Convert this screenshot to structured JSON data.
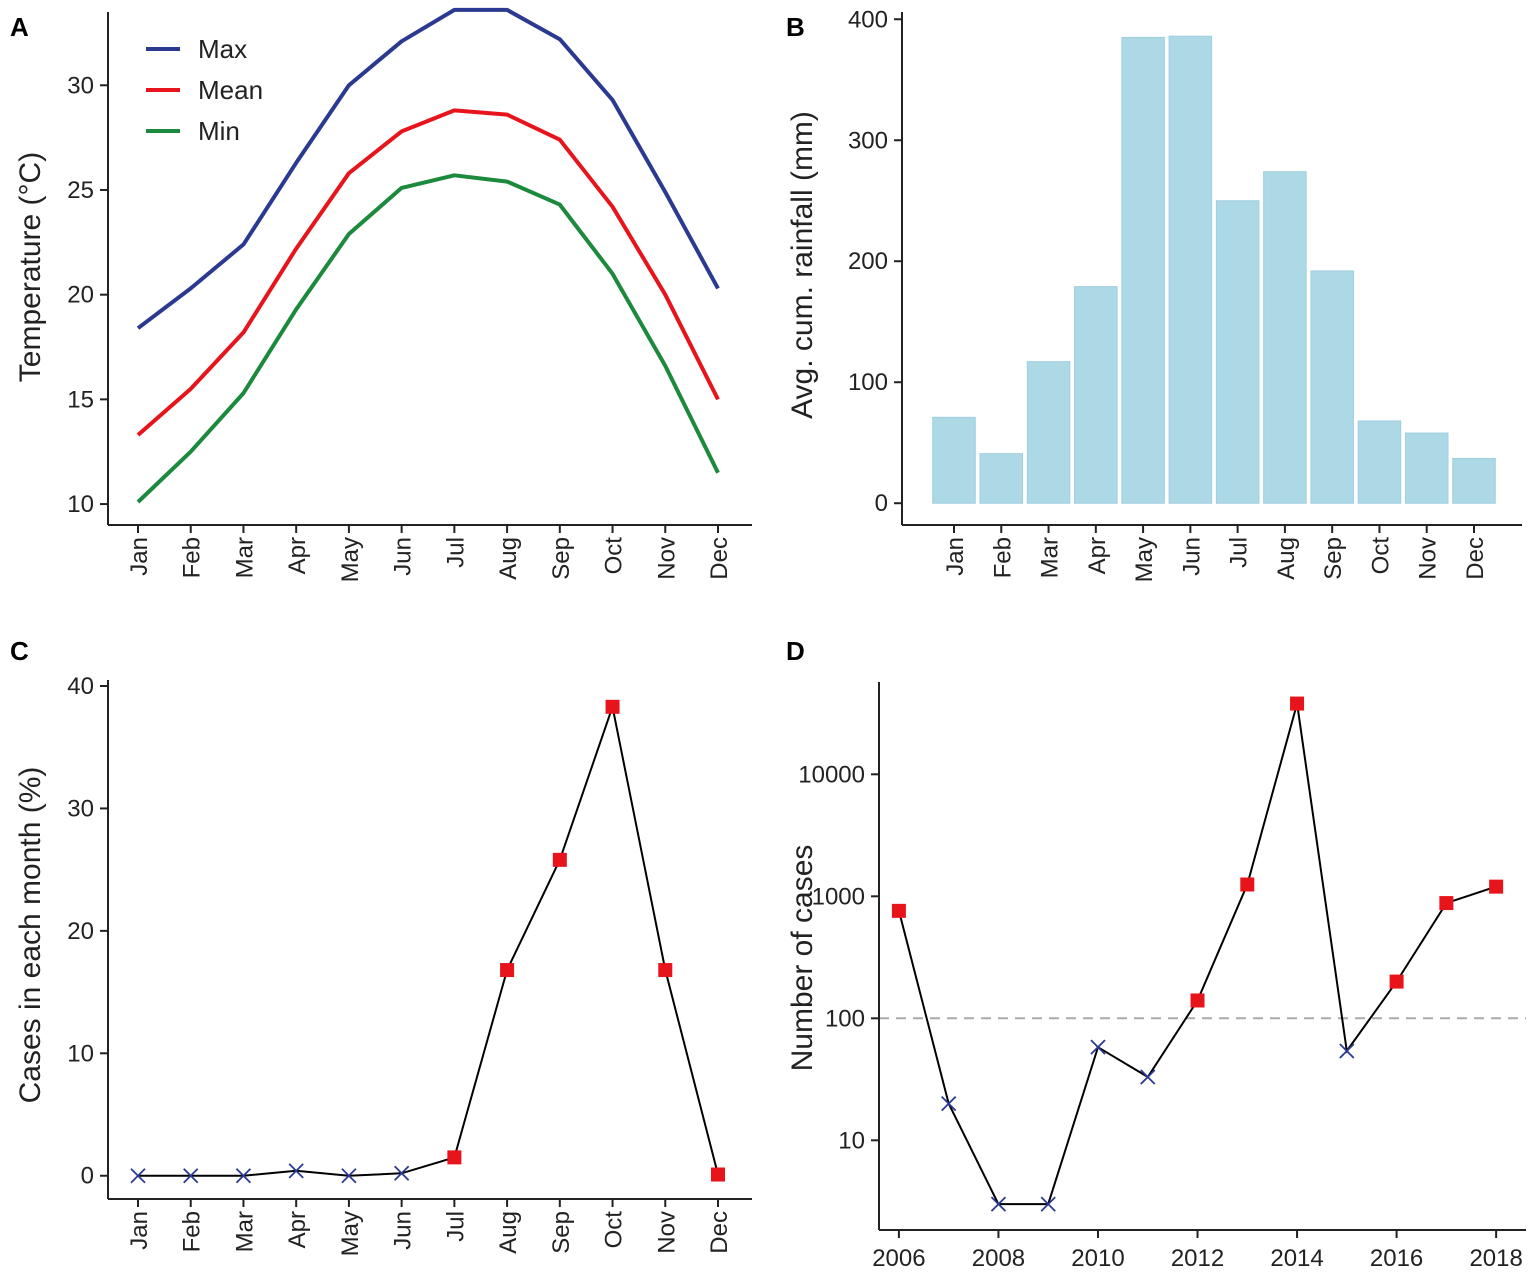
{
  "colors": {
    "max": "#2b3990",
    "mean": "#e8141c",
    "min": "#1b8a3c",
    "bar_fill": "#add8e6",
    "bar_stroke": "#9fcfe0",
    "above_threshold": "#e8141c",
    "below_threshold": "#2b3990",
    "line": "#000000",
    "threshold_line": "#aaaaaa"
  },
  "chart_data": [
    {
      "panel": "A",
      "type": "line",
      "categories": [
        "Jan",
        "Feb",
        "Mar",
        "Apr",
        "May",
        "Jun",
        "Jul",
        "Aug",
        "Sep",
        "Oct",
        "Nov",
        "Dec"
      ],
      "ylabel": "Temperature (°C)",
      "ylim": [
        9,
        33.5
      ],
      "yticks": [
        10,
        15,
        20,
        25,
        30
      ],
      "legend": "top-left",
      "series": [
        {
          "name": "Max",
          "color_key": "max",
          "values": [
            18.4,
            20.3,
            22.4,
            26.3,
            30.0,
            32.1,
            33.6,
            33.6,
            32.2,
            29.3,
            24.9,
            20.3
          ]
        },
        {
          "name": "Mean",
          "color_key": "mean",
          "values": [
            13.3,
            15.5,
            18.2,
            22.2,
            25.8,
            27.8,
            28.8,
            28.6,
            27.4,
            24.2,
            20.0,
            15.0
          ]
        },
        {
          "name": "Min",
          "color_key": "min",
          "values": [
            10.1,
            12.5,
            15.3,
            19.3,
            22.9,
            25.1,
            25.7,
            25.4,
            24.3,
            21.0,
            16.6,
            11.5
          ]
        }
      ]
    },
    {
      "panel": "B",
      "type": "bar",
      "categories": [
        "Jan",
        "Feb",
        "Mar",
        "Apr",
        "May",
        "Jun",
        "Jul",
        "Aug",
        "Sep",
        "Oct",
        "Nov",
        "Dec"
      ],
      "values": [
        71,
        41,
        117,
        179,
        385,
        386,
        250,
        274,
        192,
        68,
        58,
        37
      ],
      "ylabel": "Avg. cum. rainfall (mm)",
      "ylim": [
        -18,
        406
      ],
      "yticks": [
        0,
        100,
        200,
        300,
        400
      ]
    },
    {
      "panel": "C",
      "type": "line",
      "categories": [
        "Jan",
        "Feb",
        "Mar",
        "Apr",
        "May",
        "Jun",
        "Jul",
        "Aug",
        "Sep",
        "Oct",
        "Nov",
        "Dec"
      ],
      "values": [
        0,
        0,
        0,
        0.4,
        0,
        0.2,
        1.5,
        16.8,
        25.8,
        38.3,
        16.8,
        0.1
      ],
      "markers": [
        "x",
        "x",
        "x",
        "x",
        "x",
        "x",
        "square",
        "square",
        "square",
        "square",
        "square",
        "square"
      ],
      "ylabel": "Cases in each month (%)",
      "ylim": [
        -1.9,
        40
      ],
      "yticks": [
        0,
        10,
        20,
        30,
        40
      ]
    },
    {
      "panel": "D",
      "type": "line",
      "x": [
        2006,
        2007,
        2008,
        2009,
        2010,
        2011,
        2012,
        2013,
        2014,
        2015,
        2016,
        2017,
        2018
      ],
      "values": [
        760,
        20,
        3,
        3,
        58,
        33,
        140,
        1250,
        38000,
        54,
        200,
        880,
        1200
      ],
      "markers": [
        "square",
        "x",
        "x",
        "x",
        "x",
        "x",
        "square",
        "square",
        "square",
        "x",
        "square",
        "square",
        "square"
      ],
      "yscale": "log",
      "threshold": 100,
      "ylabel": "Number of cases",
      "xlim": [
        2005.6,
        2018.6
      ],
      "xticks": [
        2006,
        2008,
        2010,
        2012,
        2014,
        2016,
        2018
      ],
      "ylim": [
        1.84,
        57100
      ],
      "yticks": [
        10,
        100,
        1000,
        10000
      ]
    }
  ]
}
